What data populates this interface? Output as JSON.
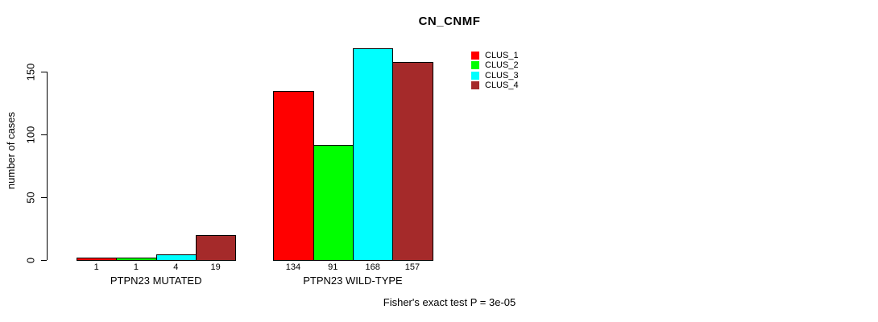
{
  "chart_data": {
    "type": "bar",
    "title": "CN_CNMF",
    "ylabel": "number of cases",
    "categories": [
      "PTPN23 MUTATED",
      "PTPN23 WILD-TYPE"
    ],
    "series": [
      {
        "name": "CLUS_1",
        "color": "#FF0000",
        "values": [
          1,
          134
        ]
      },
      {
        "name": "CLUS_2",
        "color": "#00FF00",
        "values": [
          1,
          91
        ]
      },
      {
        "name": "CLUS_3",
        "color": "#00FFFF",
        "values": [
          4,
          168
        ]
      },
      {
        "name": "CLUS_4",
        "color": "#A52A2A",
        "values": [
          19,
          157
        ]
      }
    ],
    "yticks": [
      0,
      50,
      100,
      150
    ],
    "ylim": [
      0,
      175
    ],
    "grid": false,
    "legend_position": "top-right",
    "footnote": "Fisher's exact test P = 3e-05"
  }
}
